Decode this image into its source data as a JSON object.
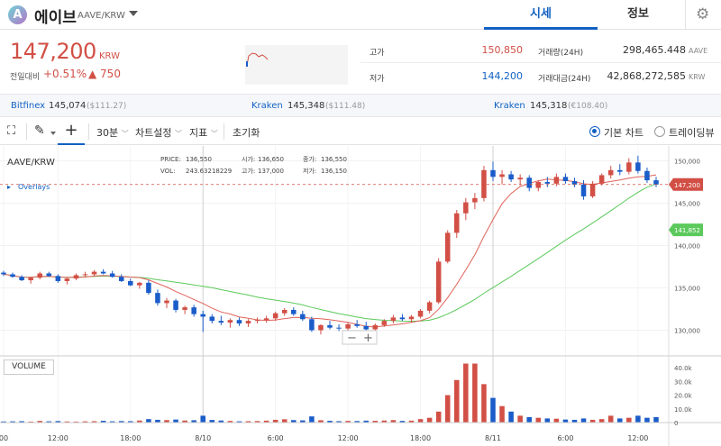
{
  "header": {
    "logo_letter": "A",
    "coin_name": "에이브",
    "coin_pair": "AAVE/KRW",
    "tabs": [
      "시세",
      "정보"
    ],
    "settings_icon": "gear-icon"
  },
  "price": {
    "current": "147,200",
    "unit": "KRW",
    "change_label": "전일대비",
    "change_pct": "+0.51%",
    "change_amt": "▲ 750"
  },
  "stats": {
    "high_label": "고가",
    "high_value": "150,850",
    "low_label": "저가",
    "low_value": "144,200",
    "volume_label": "거래량(24H)",
    "volume_value": "298,465.448",
    "volume_unit": "AAVE",
    "value_label": "거래대금(24H)",
    "value_value": "42,868,272,585",
    "value_unit": "KRW"
  },
  "exchanges": [
    {
      "name": "Bitfinex",
      "price": "145,074",
      "usd": "($111.27)"
    },
    {
      "name": "Kraken",
      "price": "145,348",
      "usd": "($111.48)"
    },
    {
      "name": "Kraken",
      "price": "145,318",
      "usd": "(€108.40)"
    }
  ],
  "toolbar": {
    "interval": "30분",
    "chart_settings": "차트설정",
    "indicators": "지표",
    "reset": "초기화",
    "basic_chart": "기본 차트",
    "tradingview": "트레이딩뷰"
  },
  "chart_legend": {
    "pair": "AAVE/KRW",
    "overlays": "Overlays",
    "price_label": "PRICE:",
    "price_value": "136,550",
    "vol_label": "VOL:",
    "vol_value": "243.63218229",
    "open_label": "시가:",
    "open_value": "136,650",
    "close_label": "종가:",
    "close_value": "136,550",
    "high_label": "고가:",
    "high_value": "137,000",
    "low_label": "저가:",
    "low_value": "136,150",
    "volume_panel": "VOLUME"
  },
  "chart_data": {
    "type": "candlestick",
    "y_ticks": [
      "150,000",
      "145,000",
      "140,000",
      "135,000",
      "130,000"
    ],
    "ylim": [
      127500,
      150900
    ],
    "vol_ticks": [
      "40.0k",
      "30.0k",
      "20.0k",
      "10.0k",
      "0"
    ],
    "vol_ylim": [
      0,
      44000
    ],
    "x_ticks": [
      "00",
      "12:00",
      "18:00",
      "8/10",
      "6:00",
      "12:00",
      "18:00",
      "8/11",
      "6:00",
      "12:00"
    ],
    "current_price_tag": "147,200",
    "ma_tag": "141,852",
    "colors": {
      "up": "#d24f45",
      "down": "#1a5cc9",
      "ma_short": "#e0625a",
      "ma_long": "#5bc95b"
    },
    "candles_note_removed": true,
    "ohlc": [
      [
        136800,
        137000,
        136400,
        136600
      ],
      [
        136600,
        136800,
        136200,
        136300
      ],
      [
        136300,
        136500,
        135800,
        135900
      ],
      [
        135900,
        136300,
        135500,
        136200
      ],
      [
        136200,
        136900,
        136000,
        136700
      ],
      [
        136700,
        136900,
        136300,
        136400
      ],
      [
        136400,
        136600,
        135600,
        135800
      ],
      [
        135800,
        136200,
        135400,
        136100
      ],
      [
        136100,
        136700,
        135900,
        136500
      ],
      [
        136500,
        136900,
        136300,
        136600
      ],
      [
        136600,
        137100,
        136400,
        136900
      ],
      [
        136900,
        137200,
        136600,
        136700
      ],
      [
        136700,
        137000,
        136200,
        136300
      ],
      [
        136300,
        136600,
        135700,
        135800
      ],
      [
        135800,
        136100,
        135200,
        135300
      ],
      [
        135300,
        135700,
        134900,
        135600
      ],
      [
        135600,
        135900,
        134200,
        134400
      ],
      [
        134400,
        134800,
        132900,
        133200
      ],
      [
        133200,
        133800,
        132600,
        133500
      ],
      [
        133500,
        133700,
        132100,
        132400
      ],
      [
        132400,
        132900,
        131900,
        132700
      ],
      [
        132700,
        133000,
        131600,
        131900
      ],
      [
        131900,
        132300,
        129800,
        131600
      ],
      [
        131600,
        131900,
        130800,
        131100
      ],
      [
        131100,
        131700,
        130600,
        130900
      ],
      [
        130900,
        131400,
        130300,
        131200
      ],
      [
        131200,
        131500,
        130500,
        130800
      ],
      [
        130800,
        131300,
        130400,
        131100
      ],
      [
        131100,
        131500,
        130800,
        131200
      ],
      [
        131200,
        131700,
        130900,
        131400
      ],
      [
        131400,
        132200,
        131100,
        132000
      ],
      [
        132000,
        132600,
        131700,
        132400
      ],
      [
        132400,
        132700,
        131700,
        131900
      ],
      [
        131900,
        132300,
        131100,
        131300
      ],
      [
        131300,
        131600,
        129800,
        130000
      ],
      [
        130000,
        130700,
        129500,
        130600
      ],
      [
        130600,
        131100,
        130100,
        130300
      ],
      [
        130300,
        130700,
        129900,
        130200
      ],
      [
        130200,
        130900,
        129900,
        130700
      ],
      [
        130700,
        131200,
        130300,
        130500
      ],
      [
        130500,
        131000,
        129600,
        130100
      ],
      [
        130100,
        130800,
        129800,
        130600
      ],
      [
        130600,
        131300,
        130400,
        131100
      ],
      [
        131100,
        131800,
        130800,
        131500
      ],
      [
        131500,
        131900,
        131100,
        131300
      ],
      [
        131300,
        131800,
        130900,
        131600
      ],
      [
        131600,
        132500,
        131400,
        132300
      ],
      [
        132300,
        133500,
        132000,
        133300
      ],
      [
        133300,
        138500,
        133100,
        138100
      ],
      [
        138100,
        141800,
        137900,
        141500
      ],
      [
        141500,
        144200,
        140900,
        143800
      ],
      [
        143800,
        145600,
        143000,
        145100
      ],
      [
        145100,
        146200,
        144300,
        145600
      ],
      [
        145600,
        149400,
        145200,
        148900
      ],
      [
        148900,
        149900,
        147600,
        148100
      ],
      [
        148100,
        148900,
        147200,
        148400
      ],
      [
        148400,
        148800,
        147500,
        147800
      ],
      [
        147800,
        148400,
        147100,
        148000
      ],
      [
        148000,
        148300,
        146400,
        146800
      ],
      [
        146800,
        147700,
        146400,
        147500
      ],
      [
        147500,
        148100,
        146900,
        147300
      ],
      [
        147300,
        148500,
        147000,
        148100
      ],
      [
        148100,
        148500,
        147300,
        147600
      ],
      [
        147600,
        148000,
        146900,
        147200
      ],
      [
        147200,
        147700,
        145400,
        145800
      ],
      [
        145800,
        147600,
        145600,
        147300
      ],
      [
        147300,
        148500,
        147100,
        148300
      ],
      [
        148300,
        149400,
        147900,
        148900
      ],
      [
        148900,
        149600,
        148300,
        148700
      ],
      [
        148700,
        150300,
        148400,
        149800
      ],
      [
        149800,
        150600,
        148500,
        148800
      ],
      [
        148800,
        149200,
        147400,
        147700
      ],
      [
        147700,
        148100,
        146900,
        147200
      ]
    ],
    "volumes": [
      800,
      900,
      1000,
      700,
      1200,
      900,
      1100,
      800,
      700,
      900,
      1000,
      1300,
      900,
      1100,
      1000,
      1500,
      2500,
      2000,
      1800,
      2200,
      1500,
      1700,
      5000,
      1900,
      1500,
      1200,
      900,
      1000,
      1100,
      1400,
      2000,
      2400,
      1800,
      1600,
      4500,
      1700,
      1300,
      1000,
      1200,
      1100,
      1400,
      1300,
      1500,
      1800,
      1200,
      1400,
      2500,
      3500,
      8000,
      20000,
      31000,
      43000,
      43000,
      28000,
      18000,
      12000,
      8000,
      5000,
      4000,
      3500,
      3000,
      2800,
      2200,
      2000,
      3000,
      2000,
      2500,
      5000,
      3000,
      3500,
      5000,
      3500,
      4000
    ]
  }
}
